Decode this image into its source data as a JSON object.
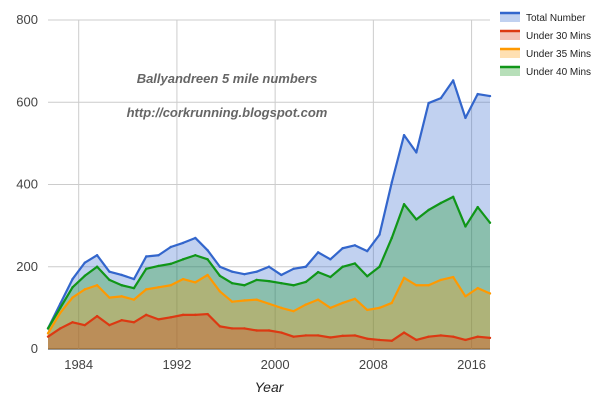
{
  "chart_data": {
    "type": "area",
    "title": "",
    "xlabel": "Year",
    "ylabel": "",
    "xlim": [
      1981.5,
      2017.5
    ],
    "ylim": [
      0,
      800
    ],
    "x_ticks": [
      1984,
      1992,
      2000,
      2008,
      2016
    ],
    "y_ticks": [
      0,
      200,
      400,
      600,
      800
    ],
    "grid": true,
    "legend_position": "right",
    "annotations": [
      "Ballyandreen 5 mile numbers",
      "http://corkrunning.blogspot.com"
    ],
    "x": [
      1981.5,
      1982.5,
      1983.5,
      1984.5,
      1985.5,
      1986.5,
      1987.5,
      1988.5,
      1989.5,
      1990.5,
      1991.5,
      1992.5,
      1993.5,
      1994.5,
      1995.5,
      1996.5,
      1997.5,
      1998.5,
      1999.5,
      2000.5,
      2001.5,
      2002.5,
      2003.5,
      2004.5,
      2005.5,
      2006.5,
      2007.5,
      2008.5,
      2009.5,
      2010.5,
      2011.5,
      2012.5,
      2013.5,
      2014.5,
      2015.5,
      2016.5,
      2017.5
    ],
    "series": [
      {
        "name": "Total Number",
        "color": "#3366cc",
        "values": [
          50,
          110,
          170,
          210,
          228,
          188,
          180,
          170,
          225,
          228,
          248,
          258,
          270,
          240,
          200,
          188,
          182,
          188,
          200,
          180,
          195,
          200,
          235,
          218,
          245,
          252,
          238,
          278,
          405,
          520,
          478,
          598,
          610,
          653,
          562,
          620,
          615
        ]
      },
      {
        "name": "Under 40 Mins",
        "color": "#109618",
        "values": [
          50,
          100,
          150,
          178,
          200,
          168,
          155,
          148,
          195,
          202,
          207,
          218,
          228,
          218,
          178,
          160,
          155,
          168,
          165,
          160,
          155,
          163,
          187,
          175,
          200,
          208,
          177,
          200,
          270,
          352,
          315,
          338,
          355,
          370,
          298,
          345,
          307
        ]
      },
      {
        "name": "Under 35 Mins",
        "color": "#ff9900",
        "values": [
          38,
          88,
          125,
          145,
          155,
          125,
          128,
          120,
          145,
          150,
          155,
          170,
          162,
          180,
          140,
          115,
          118,
          120,
          110,
          100,
          92,
          108,
          120,
          100,
          112,
          122,
          95,
          100,
          112,
          173,
          155,
          155,
          168,
          175,
          128,
          148,
          135
        ]
      },
      {
        "name": "Under 30 Mins",
        "color": "#dc3912",
        "values": [
          30,
          50,
          65,
          58,
          80,
          58,
          70,
          65,
          83,
          72,
          77,
          83,
          83,
          85,
          55,
          50,
          50,
          45,
          45,
          40,
          30,
          33,
          33,
          28,
          32,
          33,
          25,
          22,
          20,
          40,
          22,
          30,
          33,
          30,
          22,
          30,
          27
        ]
      }
    ],
    "legend": [
      "Total Number",
      "Under 30 Mins",
      "Under 35 Mins",
      "Under 40 Mins"
    ]
  }
}
